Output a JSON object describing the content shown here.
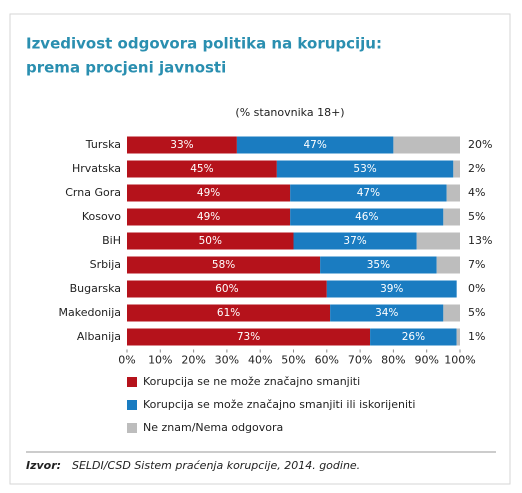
{
  "chart_data": {
    "type": "stacked_barh",
    "title": [
      "Izvedivost odgovora politika na korupciju:",
      "prema procjeni javnosti"
    ],
    "subtitle": "(% stanovnika 18+)",
    "categories": [
      "Turska",
      "Hrvatska",
      "Crna Gora",
      "Kosovo",
      "BiH",
      "Srbija",
      "Bugarska",
      "Makedonija",
      "Albanija"
    ],
    "series": [
      {
        "name": "Korupcija se ne može značajno smanjiti",
        "color": "#b5121b",
        "values": [
          33,
          45,
          49,
          49,
          50,
          58,
          60,
          61,
          73
        ],
        "value_labels": [
          "33%",
          "45%",
          "49%",
          "49%",
          "50%",
          "58%",
          "60%",
          "61%",
          "73%"
        ]
      },
      {
        "name": "Korupcija se može značajno smanjiti ili iskorijeniti",
        "color": "#1a7cc1",
        "values": [
          47,
          53,
          47,
          46,
          37,
          35,
          39,
          34,
          26
        ],
        "value_labels": [
          "47%",
          "53%",
          "47%",
          "46%",
          "37%",
          "35%",
          "39%",
          "34%",
          "26%"
        ]
      },
      {
        "name": "Ne znam/Nema odgovora",
        "color": "#bdbdbd",
        "values": [
          20,
          2,
          4,
          5,
          13,
          7,
          0,
          5,
          1
        ],
        "value_labels": [
          "20%",
          "2%",
          "4%",
          "5%",
          "13%",
          "7%",
          "0%",
          "5%",
          "1%"
        ]
      }
    ],
    "xlim": [
      0,
      100
    ],
    "xticks": [
      {
        "value": 0,
        "label": "0%"
      },
      {
        "value": 10,
        "label": "10%"
      },
      {
        "value": 20,
        "label": "20%"
      },
      {
        "value": 30,
        "label": "30%"
      },
      {
        "value": 40,
        "label": "40%"
      },
      {
        "value": 50,
        "label": "50%"
      },
      {
        "value": 60,
        "label": "60%"
      },
      {
        "value": 70,
        "label": "70%"
      },
      {
        "value": 80,
        "label": "80%"
      },
      {
        "value": 90,
        "label": "90%"
      },
      {
        "value": 100,
        "label": "100%"
      }
    ],
    "source_label": "Izvor:",
    "source": "SELDI/CSD Sistem praćenja korupcije, 2014. godine."
  }
}
